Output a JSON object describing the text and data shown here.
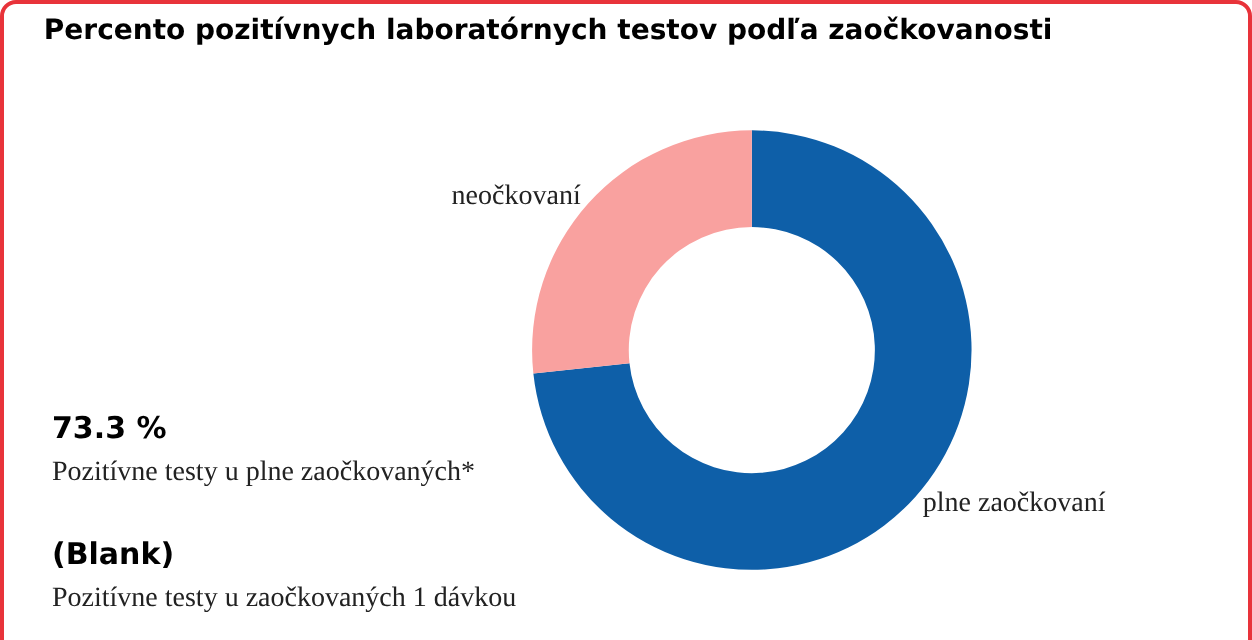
{
  "chart_data": {
    "type": "donut",
    "title": "Percento pozitívnych laboratórnych testov podľa zaočkovanosti",
    "categories": [
      "plne zaočkovaní",
      "neočkovaní"
    ],
    "values": [
      73.3,
      26.7
    ],
    "colors": [
      "#0e5fa8",
      "#f9a19f"
    ],
    "annotations": [
      "73.3 %",
      "Pozitívne testy u plne zaočkovaných*",
      "(Blank)",
      "Pozitívne testy u zaočkovaných 1 dávkou"
    ],
    "legend": false
  }
}
